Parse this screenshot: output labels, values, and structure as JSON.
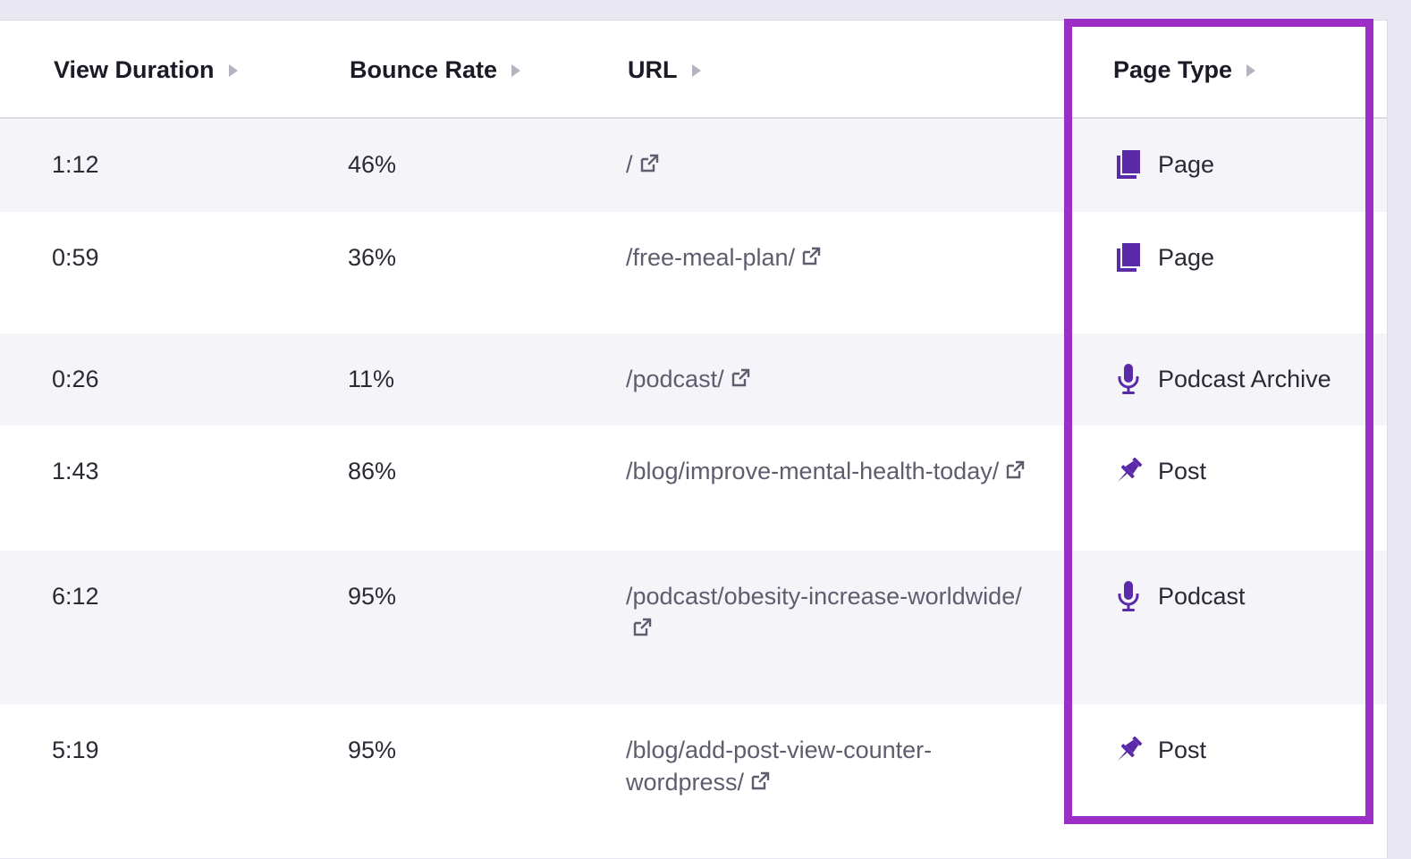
{
  "table": {
    "headers": [
      {
        "label": "View Duration"
      },
      {
        "label": "Bounce Rate"
      },
      {
        "label": "URL"
      },
      {
        "label": "Page Type"
      }
    ],
    "rows": [
      {
        "duration": "1:12",
        "bounce": "46%",
        "url": "/",
        "type": "Page",
        "icon": "page-icon"
      },
      {
        "duration": "0:59",
        "bounce": "36%",
        "url": "/free-meal-plan/",
        "type": "Page",
        "icon": "page-icon"
      },
      {
        "duration": "0:26",
        "bounce": "11%",
        "url": "/podcast/",
        "type": "Podcast Archive",
        "icon": "microphone-icon"
      },
      {
        "duration": "1:43",
        "bounce": "86%",
        "url": "/blog/improve-mental-health-today/",
        "type": "Post",
        "icon": "pin-icon"
      },
      {
        "duration": "6:12",
        "bounce": "95%",
        "url": "/podcast/obesity-increase-worldwide/",
        "type": "Podcast",
        "icon": "microphone-icon"
      },
      {
        "duration": "5:19",
        "bounce": "95%",
        "url": "/blog/add-post-view-counter-wordpress/",
        "type": "Post",
        "icon": "pin-icon"
      }
    ]
  },
  "colors": {
    "icon": "#5b2aa8",
    "highlight": "#9b2ec6",
    "row_shade": "#f5f4f9"
  }
}
